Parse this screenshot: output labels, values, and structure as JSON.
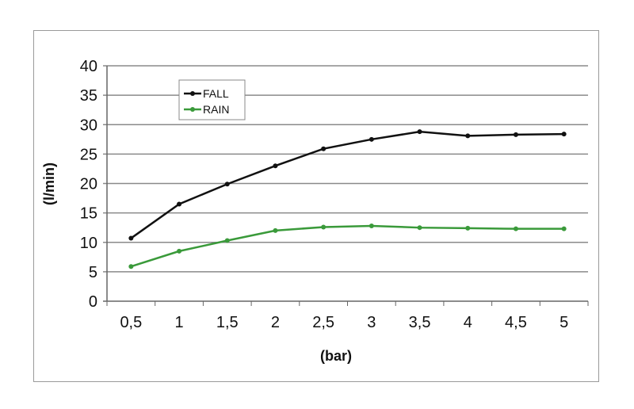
{
  "chart_data": {
    "type": "line",
    "title": "",
    "xlabel": "(bar)",
    "ylabel": "(l/min)",
    "categories": [
      "0,5",
      "1",
      "1,5",
      "2",
      "2,5",
      "3",
      "3,5",
      "4",
      "4,5",
      "5"
    ],
    "ylim": [
      0,
      40
    ],
    "yticks": [
      "0",
      "5",
      "10",
      "15",
      "20",
      "25",
      "30",
      "35",
      "40"
    ],
    "grid": true,
    "legend": "top-left",
    "series": [
      {
        "name": "FALL",
        "color": "#111111",
        "values": [
          10.7,
          16.5,
          19.9,
          23.0,
          25.9,
          27.5,
          28.8,
          28.1,
          28.3,
          28.4
        ]
      },
      {
        "name": "RAIN",
        "color": "#3a9a3a",
        "values": [
          5.9,
          8.5,
          10.3,
          12.0,
          12.6,
          12.8,
          12.5,
          12.4,
          12.3,
          12.3
        ]
      }
    ]
  }
}
